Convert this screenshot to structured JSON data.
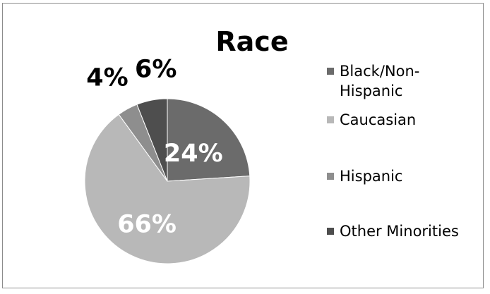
{
  "chart_data": {
    "type": "pie",
    "title": "Race",
    "categories": [
      "Black/Non-Hispanic",
      "Caucasian",
      "Hispanic",
      "Other Minorities"
    ],
    "values": [
      24,
      66,
      4,
      6
    ],
    "data_labels": [
      "24%",
      "66%",
      "4%",
      "6%"
    ],
    "colors": [
      "#6b6b6b",
      "#b8b8b8",
      "#8e8e8e",
      "#4e4e4e"
    ],
    "legend": {
      "placement": "right",
      "entries": [
        {
          "lines": [
            "Black/Non-",
            "Hispanic"
          ]
        },
        {
          "lines": [
            "Caucasian"
          ]
        },
        {
          "lines": [
            "Hispanic"
          ]
        },
        {
          "lines": [
            "Other Minorities"
          ]
        }
      ]
    }
  }
}
